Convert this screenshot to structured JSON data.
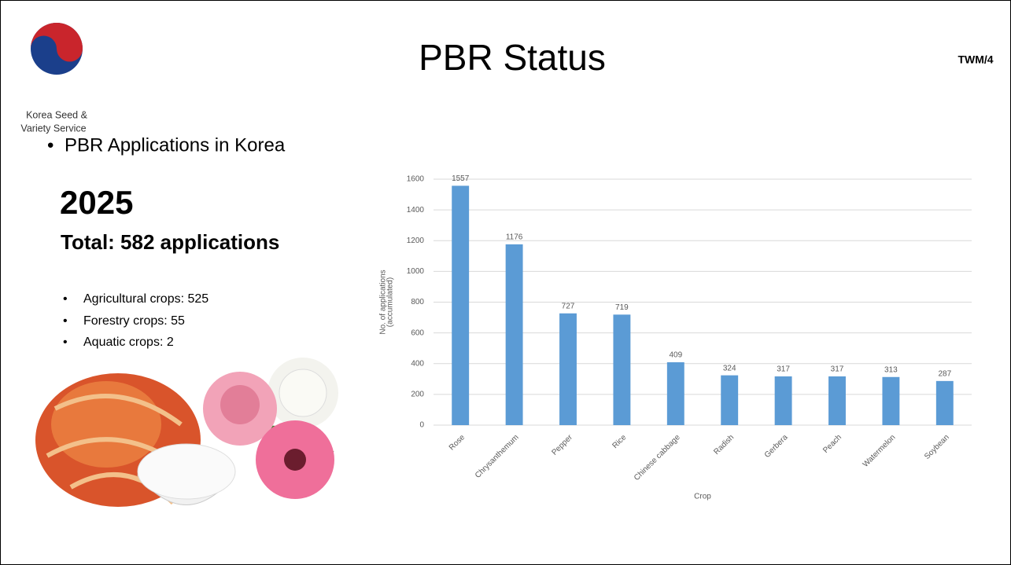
{
  "slide": {
    "title": "PBR Status",
    "page_code": "TWM/4",
    "logo_text": [
      "Korea Seed &",
      "Variety Service"
    ],
    "section": "PBR Applications in Korea",
    "year": "2025",
    "total": "Total: 582 applications",
    "bullets": [
      "Agricultural crops: 525",
      "Forestry crops: 55",
      "Aquatic crops: 2"
    ]
  },
  "chart_data": {
    "type": "bar",
    "categories": [
      "Rose",
      "Chrysanthemum",
      "Pepper",
      "Rice",
      "Chinese cabbage",
      "Radish",
      "Gerbera",
      "Peach",
      "Watermelon",
      "Soybean"
    ],
    "values": [
      1557,
      1176,
      727,
      719,
      409,
      324,
      317,
      317,
      313,
      287
    ],
    "color": "#5b9bd5",
    "x_label": "Crop",
    "y_label": [
      "No. of applications",
      "(accumulated)"
    ],
    "ylim": [
      0,
      1600
    ],
    "yticks": [
      0,
      200,
      400,
      600,
      800,
      1000,
      1200,
      1400,
      1600
    ],
    "grid": true,
    "data_labels": true
  }
}
